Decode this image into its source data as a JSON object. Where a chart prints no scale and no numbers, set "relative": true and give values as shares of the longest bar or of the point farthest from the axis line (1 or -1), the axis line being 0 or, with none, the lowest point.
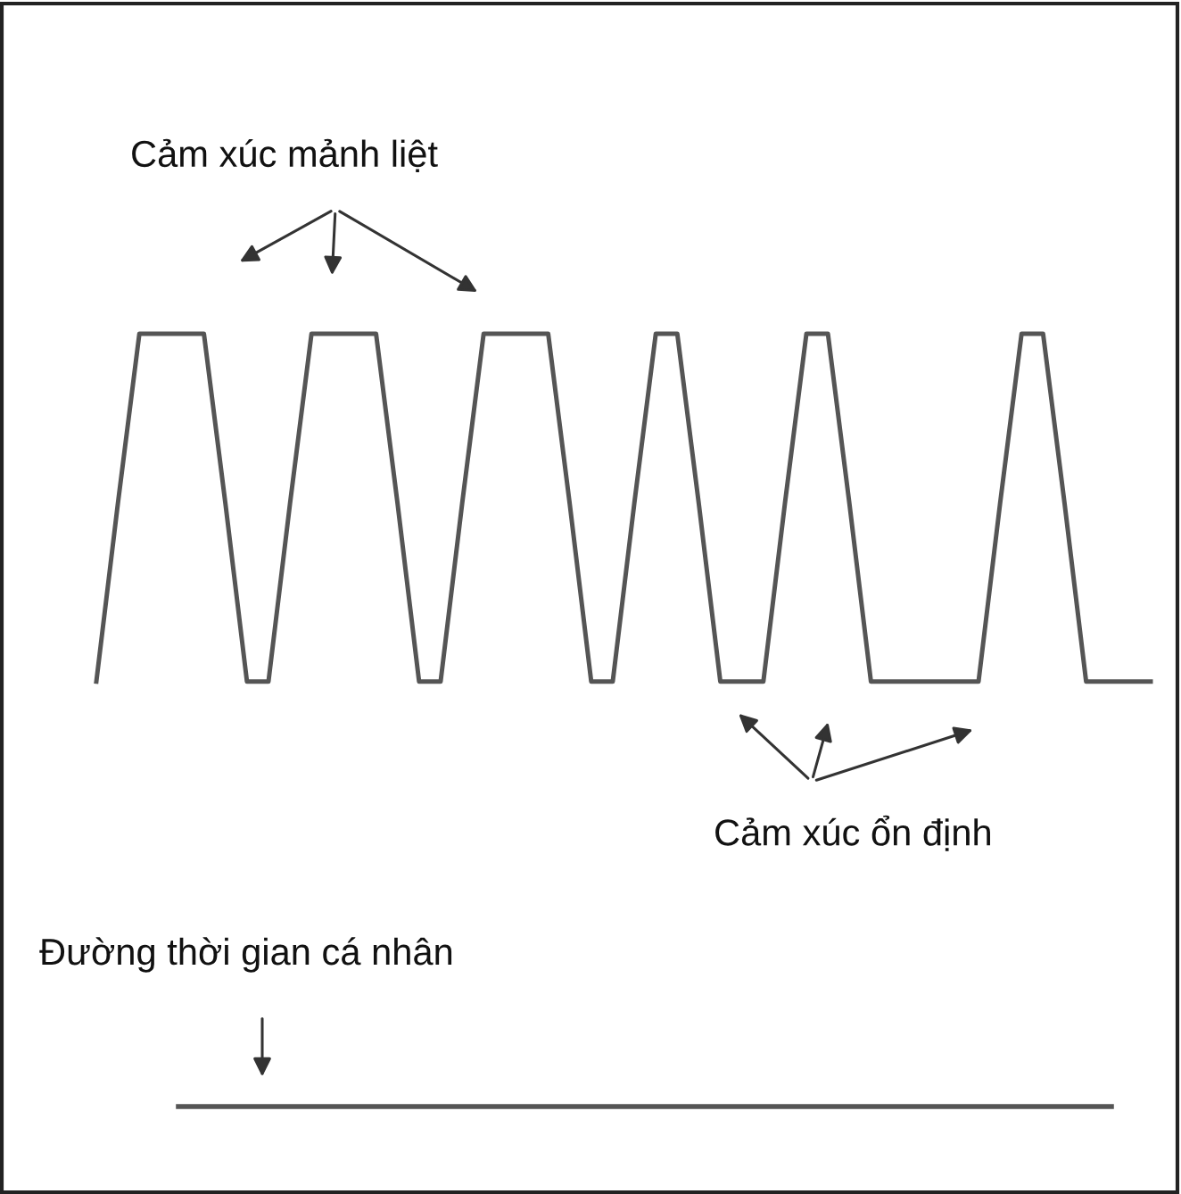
{
  "chart_data": {
    "type": "line",
    "relative": true,
    "categories": [
      null,
      null,
      null,
      null,
      null,
      null,
      null,
      null,
      null,
      null,
      null,
      null,
      null,
      null,
      null,
      null,
      null,
      null,
      null,
      null,
      null,
      null,
      null,
      null,
      null,
      null,
      null,
      null,
      null,
      null,
      null,
      null,
      null,
      null,
      null,
      null,
      null,
      null,
      null,
      null,
      null,
      null,
      null,
      null,
      null,
      null,
      null,
      null,
      null,
      null
    ],
    "series": [
      {
        "color": "#555555",
        "values": [
          0.55,
          0.78,
          1,
          1,
          1,
          1,
          0.78,
          0.55,
          0.55,
          0.78,
          1,
          1,
          1,
          1,
          0.78,
          0.55,
          0.55,
          0.78,
          1,
          1,
          1,
          1,
          0.78,
          0.55,
          0.55,
          0.78,
          1,
          1,
          0.78,
          0.55,
          0.55,
          0.55,
          0.78,
          1,
          1,
          0.78,
          0.55,
          0.55,
          0.55,
          0.55,
          0.55,
          0.55,
          0.78,
          1,
          1,
          0.78,
          0.55,
          0.55,
          0.55,
          0.55
        ]
      }
    ],
    "annotations": [
      "Cảm xúc mảnh liệt",
      "Cảm xúc ổn định",
      "Đường thời gian cá nhân"
    ],
    "marker": "none",
    "line_style": "solid"
  }
}
